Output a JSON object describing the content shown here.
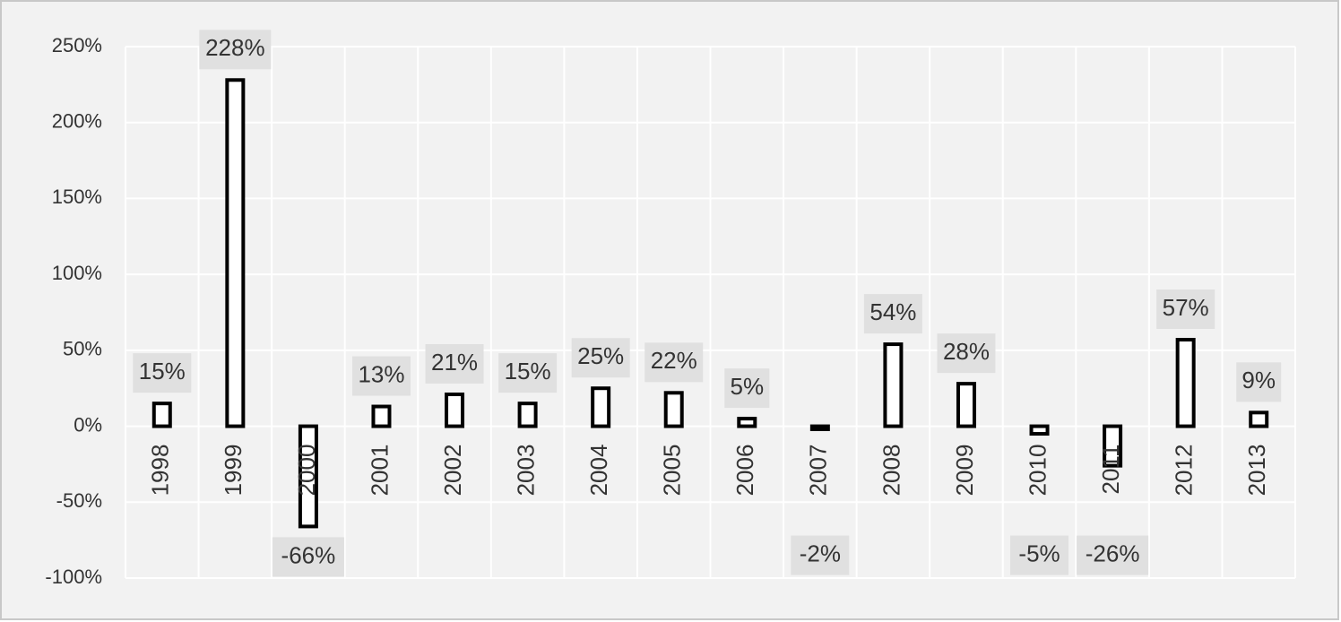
{
  "chart_data": {
    "type": "bar",
    "categories": [
      "1998",
      "1999",
      "2000",
      "2001",
      "2002",
      "2003",
      "2004",
      "2005",
      "2006",
      "2007",
      "2008",
      "2009",
      "2010",
      "2011",
      "2012",
      "2013"
    ],
    "values": [
      15,
      228,
      -66,
      13,
      21,
      15,
      25,
      22,
      5,
      -2,
      54,
      28,
      -5,
      -26,
      57,
      9
    ],
    "value_labels": [
      "15%",
      "228%",
      "-66%",
      "13%",
      "21%",
      "15%",
      "25%",
      "22%",
      "5%",
      "-2%",
      "54%",
      "28%",
      "-5%",
      "-26%",
      "57%",
      "9%"
    ],
    "color": "#ffffff",
    "edge_color": "#000000",
    "ylim": [
      -100,
      250
    ],
    "yticks": [
      {
        "value": -100,
        "label": "-100%"
      },
      {
        "value": -50,
        "label": "-50%"
      },
      {
        "value": 0,
        "label": "0%"
      },
      {
        "value": 50,
        "label": "50%"
      },
      {
        "value": 100,
        "label": "100%"
      },
      {
        "value": 150,
        "label": "150%"
      },
      {
        "value": 200,
        "label": "200%"
      },
      {
        "value": 250,
        "label": "250%"
      }
    ],
    "grid": true
  }
}
